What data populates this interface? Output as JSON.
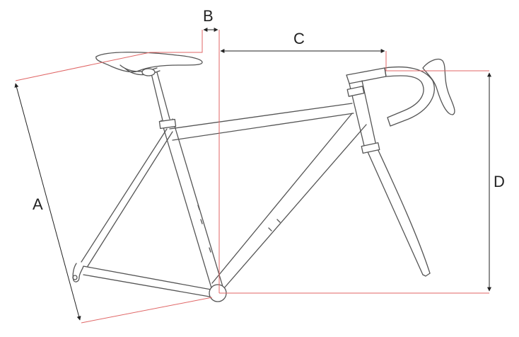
{
  "labels": {
    "a": "A",
    "b": "B",
    "c": "C",
    "d": "D"
  },
  "colors": {
    "frame_line": "#555555",
    "measure_red": "#e06666",
    "dimension_black": "#222222",
    "background": "#ffffff"
  }
}
